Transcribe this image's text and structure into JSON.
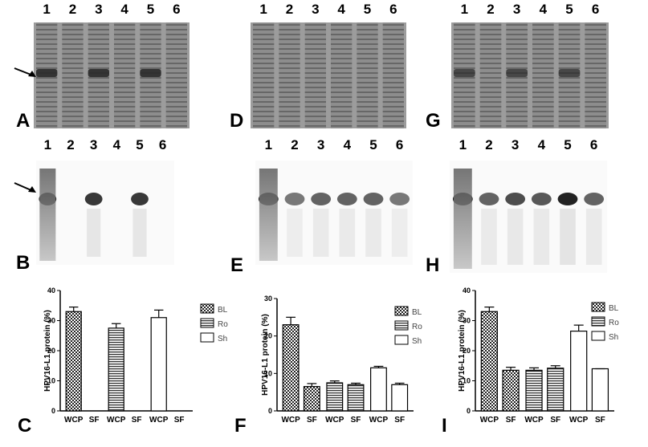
{
  "gels": [
    {
      "panel": "A",
      "lanes": [
        "1",
        "2",
        "3",
        "4",
        "5",
        "6"
      ]
    },
    {
      "panel": "D",
      "lanes": [
        "1",
        "2",
        "3",
        "4",
        "5",
        "6"
      ]
    },
    {
      "panel": "G",
      "lanes": [
        "1",
        "2",
        "3",
        "4",
        "5",
        "6"
      ]
    },
    {
      "panel": "B",
      "lanes": [
        "1",
        "2",
        "3",
        "4",
        "5",
        "6"
      ]
    },
    {
      "panel": "E",
      "lanes": [
        "1",
        "2",
        "3",
        "4",
        "5",
        "6"
      ]
    },
    {
      "panel": "H",
      "lanes": [
        "1",
        "2",
        "3",
        "4",
        "5",
        "6"
      ]
    }
  ],
  "chart_data": [
    {
      "type": "bar",
      "panel": "C",
      "y_label": "HPV16-L1 protein (%)",
      "categories": [
        "WCP",
        "SF",
        "WCP",
        "SF",
        "WCP",
        "SF"
      ],
      "series": [
        {
          "name": "BL",
          "pattern": "checker",
          "values": [
            33,
            null,
            null,
            null,
            null,
            null
          ],
          "errors": [
            1.5,
            null,
            null,
            null,
            null,
            null
          ]
        },
        {
          "name": "Ro",
          "pattern": "hstripe",
          "values": [
            null,
            null,
            27.5,
            null,
            null,
            null
          ],
          "errors": [
            null,
            null,
            1.5,
            null,
            null,
            null
          ]
        },
        {
          "name": "Sh",
          "pattern": "none",
          "values": [
            null,
            null,
            null,
            null,
            31,
            null
          ],
          "errors": [
            null,
            null,
            null,
            null,
            2.5,
            null
          ]
        }
      ],
      "ylim": [
        0,
        40
      ],
      "yticks": [
        0,
        10,
        20,
        30,
        40
      ]
    },
    {
      "type": "bar",
      "panel": "F",
      "y_label": "HPV16-L1 protein (%)",
      "categories": [
        "WCP",
        "SF",
        "WCP",
        "SF",
        "WCP",
        "SF"
      ],
      "series": [
        {
          "name": "BL",
          "pattern": "checker",
          "values": [
            23,
            6.5,
            null,
            null,
            null,
            null
          ],
          "errors": [
            2,
            0.8,
            null,
            null,
            null,
            null
          ]
        },
        {
          "name": "Ro",
          "pattern": "hstripe",
          "values": [
            null,
            null,
            7.5,
            7,
            null,
            null
          ],
          "errors": [
            null,
            null,
            0.5,
            0.4,
            null,
            null
          ]
        },
        {
          "name": "Sh",
          "pattern": "none",
          "values": [
            null,
            null,
            null,
            null,
            11.5,
            7
          ],
          "errors": [
            null,
            null,
            null,
            null,
            0.4,
            0.4
          ]
        }
      ],
      "ylim": [
        0,
        30
      ],
      "yticks": [
        0,
        10,
        20,
        30
      ]
    },
    {
      "type": "bar",
      "panel": "I",
      "y_label": "HPV16-L1 protein (%)",
      "categories": [
        "WCP",
        "SF",
        "WCP",
        "SF",
        "WCP",
        "SF"
      ],
      "series": [
        {
          "name": "BL",
          "pattern": "checker",
          "values": [
            33,
            13.5,
            null,
            null,
            null,
            null
          ],
          "errors": [
            1.5,
            1,
            null,
            null,
            null,
            null
          ]
        },
        {
          "name": "Ro",
          "pattern": "hstripe",
          "values": [
            null,
            null,
            13.5,
            14.2,
            null,
            null
          ],
          "errors": [
            null,
            null,
            0.8,
            0.8,
            null,
            null
          ]
        },
        {
          "name": "Sh",
          "pattern": "none",
          "values": [
            null,
            null,
            null,
            null,
            26.5,
            14
          ],
          "errors": [
            null,
            null,
            null,
            null,
            2,
            0
          ]
        }
      ],
      "ylim": [
        0,
        40
      ],
      "yticks": [
        0,
        10,
        20,
        30,
        40
      ]
    }
  ]
}
